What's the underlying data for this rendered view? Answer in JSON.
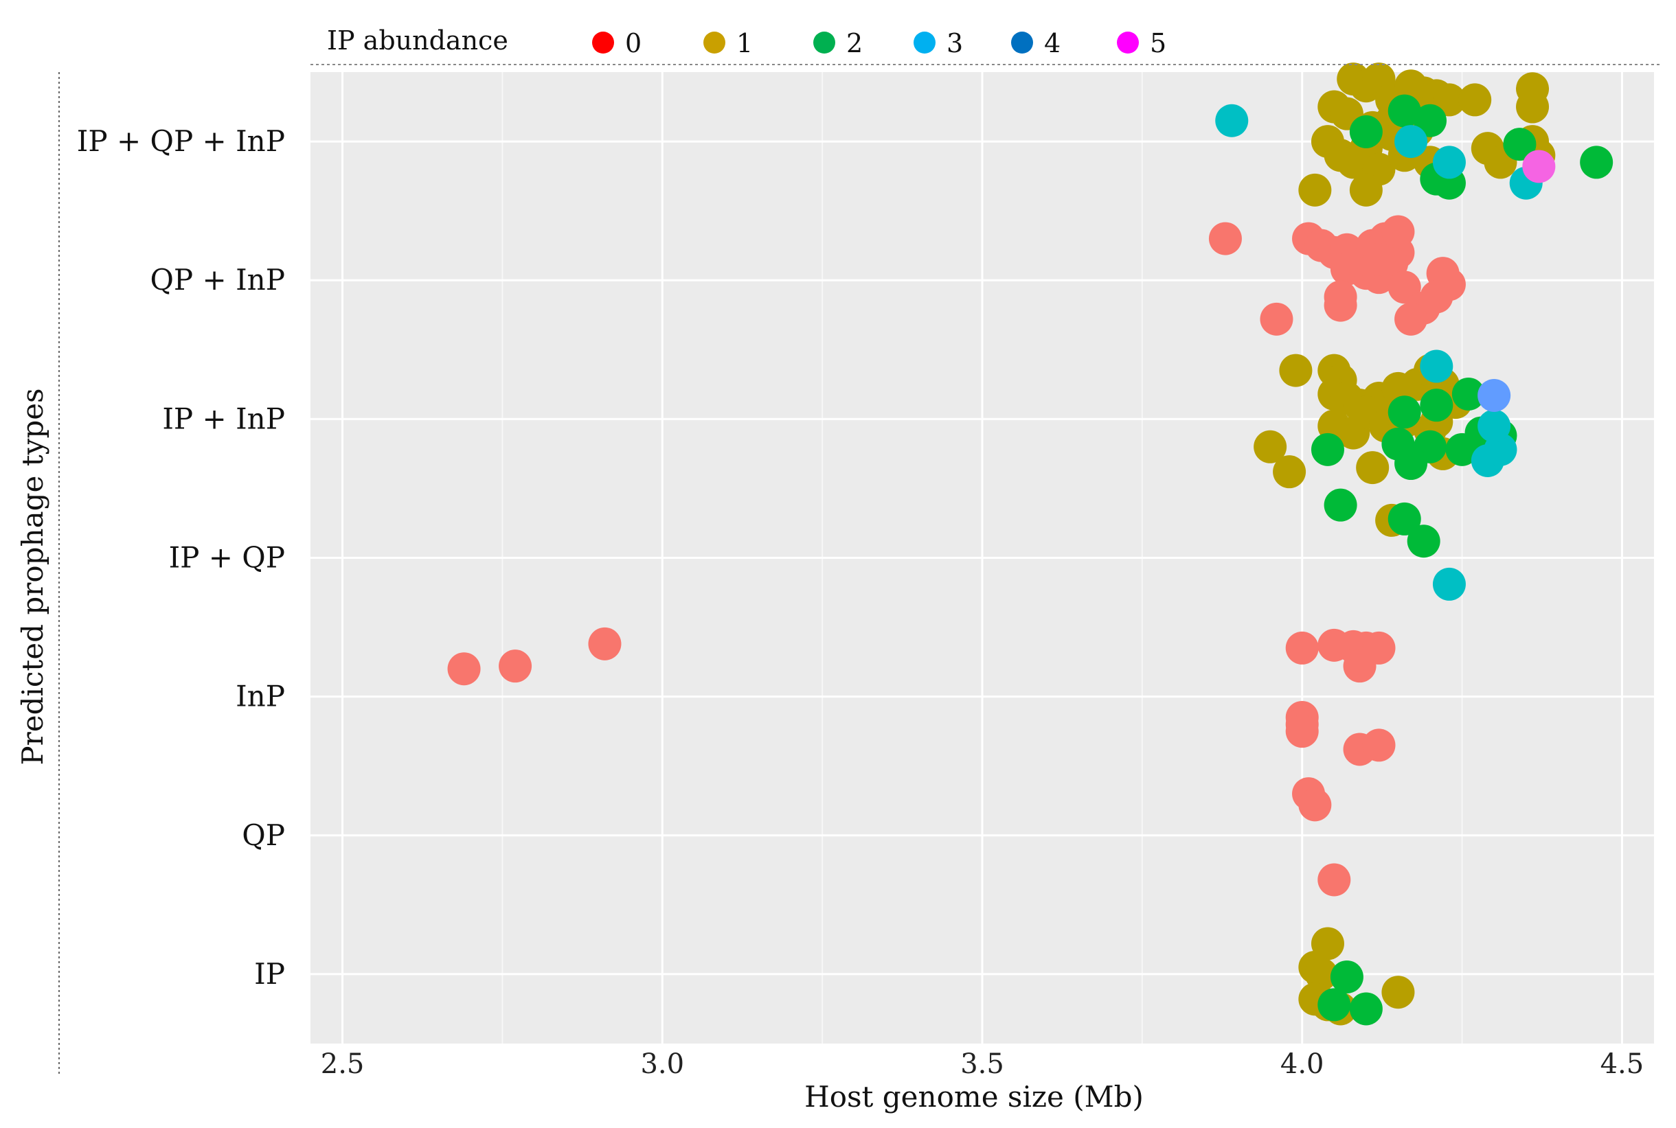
{
  "chart_data": {
    "type": "scatter",
    "title": "",
    "xlabel": "Host genome size (Mb)",
    "ylabel": "Predicted prophage types",
    "xlim": [
      2.45,
      4.55
    ],
    "x_ticks": [
      "2.5",
      "3.0",
      "3.5",
      "4.0",
      "4.5"
    ],
    "y_categories": [
      "IP",
      "QP",
      "InP",
      "IP + QP",
      "IP + InP",
      "QP + InP",
      "IP + QP + InP"
    ],
    "legend": {
      "title": "IP abundance",
      "position": "top",
      "entries": [
        {
          "label": "0",
          "color": "#ff0000"
        },
        {
          "label": "1",
          "color": "#c9a000"
        },
        {
          "label": "2",
          "color": "#00b050"
        },
        {
          "label": "3",
          "color": "#00b0f0"
        },
        {
          "label": "4",
          "color": "#0070c0"
        },
        {
          "label": "5",
          "color": "#ff00ff"
        }
      ]
    },
    "point_colors": {
      "0": "#f8766d",
      "1": "#b79f00",
      "2": "#00ba38",
      "3": "#00bfc4",
      "4": "#619cff",
      "5": "#f564e3"
    },
    "series": [
      {
        "category": "IP + QP + InP",
        "abundance": 1,
        "points": [
          [
            4.05,
            0.25
          ],
          [
            4.07,
            0.2
          ],
          [
            4.08,
            0.45
          ],
          [
            4.1,
            0.4
          ],
          [
            4.12,
            0.45
          ],
          [
            4.14,
            0.3
          ],
          [
            4.17,
            0.4
          ],
          [
            4.19,
            0.35
          ],
          [
            4.21,
            0.33
          ],
          [
            4.23,
            0.3
          ],
          [
            4.27,
            0.3
          ],
          [
            4.36,
            0.38
          ],
          [
            4.36,
            0.25
          ],
          [
            4.04,
            0.0
          ],
          [
            4.06,
            -0.1
          ],
          [
            4.08,
            -0.15
          ],
          [
            4.1,
            -0.05
          ],
          [
            4.12,
            -0.2
          ],
          [
            4.14,
            0.05
          ],
          [
            4.16,
            -0.1
          ],
          [
            4.18,
            0.08
          ],
          [
            4.2,
            -0.15
          ],
          [
            4.22,
            -0.25
          ],
          [
            4.29,
            -0.05
          ],
          [
            4.31,
            -0.15
          ],
          [
            4.02,
            -0.35
          ],
          [
            4.1,
            -0.35
          ],
          [
            4.14,
            0.15
          ],
          [
            4.18,
            0.2
          ],
          [
            4.11,
            0.1
          ],
          [
            4.36,
            0.0
          ],
          [
            4.37,
            -0.1
          ]
        ]
      },
      {
        "category": "IP + QP + InP",
        "abundance": 2,
        "points": [
          [
            4.1,
            0.07
          ],
          [
            4.16,
            0.22
          ],
          [
            4.21,
            -0.27
          ],
          [
            4.23,
            -0.3
          ],
          [
            4.34,
            -0.02
          ],
          [
            4.46,
            -0.15
          ],
          [
            4.2,
            0.15
          ]
        ]
      },
      {
        "category": "IP + QP + InP",
        "abundance": 3,
        "points": [
          [
            3.89,
            0.15
          ],
          [
            4.23,
            -0.15
          ],
          [
            4.35,
            -0.3
          ],
          [
            4.17,
            0.0
          ]
        ]
      },
      {
        "category": "IP + QP + InP",
        "abundance": 5,
        "points": [
          [
            4.37,
            -0.18
          ]
        ]
      },
      {
        "category": "QP + InP",
        "abundance": 0,
        "points": [
          [
            3.88,
            0.3
          ],
          [
            4.01,
            0.3
          ],
          [
            4.03,
            0.25
          ],
          [
            4.05,
            0.2
          ],
          [
            4.07,
            0.22
          ],
          [
            4.09,
            0.18
          ],
          [
            4.11,
            0.25
          ],
          [
            4.13,
            0.3
          ],
          [
            4.15,
            0.35
          ],
          [
            4.15,
            0.2
          ],
          [
            4.07,
            0.08
          ],
          [
            4.1,
            0.05
          ],
          [
            4.12,
            0.02
          ],
          [
            4.14,
            0.12
          ],
          [
            4.16,
            -0.05
          ],
          [
            4.22,
            0.05
          ],
          [
            4.23,
            -0.03
          ],
          [
            4.21,
            -0.12
          ],
          [
            4.06,
            -0.12
          ],
          [
            4.06,
            -0.18
          ],
          [
            4.19,
            -0.2
          ],
          [
            4.17,
            -0.28
          ],
          [
            3.96,
            -0.28
          ],
          [
            4.12,
            0.15
          ]
        ]
      },
      {
        "category": "IP + InP",
        "abundance": 1,
        "points": [
          [
            3.99,
            0.35
          ],
          [
            4.05,
            0.35
          ],
          [
            4.06,
            0.28
          ],
          [
            4.05,
            0.18
          ],
          [
            4.07,
            0.15
          ],
          [
            4.09,
            0.1
          ],
          [
            4.12,
            0.15
          ],
          [
            4.15,
            0.22
          ],
          [
            4.18,
            0.25
          ],
          [
            4.2,
            0.35
          ],
          [
            4.22,
            0.25
          ],
          [
            4.05,
            -0.05
          ],
          [
            4.08,
            -0.1
          ],
          [
            4.1,
            0.05
          ],
          [
            4.13,
            -0.05
          ],
          [
            4.16,
            -0.02
          ],
          [
            4.2,
            -0.08
          ],
          [
            3.95,
            -0.2
          ],
          [
            3.98,
            -0.38
          ],
          [
            4.11,
            -0.35
          ],
          [
            4.22,
            -0.25
          ],
          [
            4.24,
            0.12
          ],
          [
            4.21,
            -0.02
          ]
        ]
      },
      {
        "category": "IP + InP",
        "abundance": 2,
        "points": [
          [
            4.04,
            -0.22
          ],
          [
            4.15,
            -0.18
          ],
          [
            4.16,
            0.05
          ],
          [
            4.21,
            0.1
          ],
          [
            4.26,
            0.18
          ],
          [
            4.28,
            -0.1
          ],
          [
            4.31,
            -0.12
          ],
          [
            4.2,
            -0.2
          ],
          [
            4.17,
            -0.32
          ],
          [
            4.25,
            -0.22
          ]
        ]
      },
      {
        "category": "IP + InP",
        "abundance": 3,
        "points": [
          [
            4.21,
            0.38
          ],
          [
            4.29,
            -0.3
          ],
          [
            4.31,
            -0.22
          ],
          [
            4.3,
            -0.05
          ]
        ]
      },
      {
        "category": "IP + InP",
        "abundance": 4,
        "points": [
          [
            4.3,
            0.17
          ]
        ]
      },
      {
        "category": "IP + QP",
        "abundance": 1,
        "points": [
          [
            4.14,
            0.27
          ]
        ]
      },
      {
        "category": "IP + QP",
        "abundance": 2,
        "points": [
          [
            4.06,
            0.38
          ],
          [
            4.16,
            0.28
          ],
          [
            4.19,
            0.12
          ]
        ]
      },
      {
        "category": "IP + QP",
        "abundance": 3,
        "points": [
          [
            4.23,
            -0.19
          ]
        ]
      },
      {
        "category": "InP",
        "abundance": 0,
        "points": [
          [
            2.69,
            0.2
          ],
          [
            2.77,
            0.22
          ],
          [
            2.91,
            0.38
          ],
          [
            4.0,
            0.35
          ],
          [
            4.05,
            0.37
          ],
          [
            4.08,
            0.36
          ],
          [
            4.1,
            0.35
          ],
          [
            4.12,
            0.35
          ],
          [
            4.09,
            0.22
          ],
          [
            4.0,
            -0.15
          ],
          [
            4.0,
            -0.2
          ],
          [
            4.0,
            -0.25
          ],
          [
            4.09,
            -0.38
          ],
          [
            4.12,
            -0.35
          ]
        ]
      },
      {
        "category": "QP",
        "abundance": 0,
        "points": [
          [
            4.01,
            0.3
          ],
          [
            4.02,
            0.22
          ],
          [
            4.05,
            -0.32
          ]
        ]
      },
      {
        "category": "IP",
        "abundance": 1,
        "points": [
          [
            4.04,
            0.22
          ],
          [
            4.02,
            0.05
          ],
          [
            4.03,
            0.0
          ],
          [
            4.02,
            -0.18
          ],
          [
            4.04,
            -0.22
          ],
          [
            4.06,
            -0.25
          ],
          [
            4.15,
            -0.13
          ]
        ]
      },
      {
        "category": "IP",
        "abundance": 2,
        "points": [
          [
            4.07,
            -0.02
          ],
          [
            4.05,
            -0.22
          ],
          [
            4.1,
            -0.25
          ]
        ]
      }
    ]
  }
}
